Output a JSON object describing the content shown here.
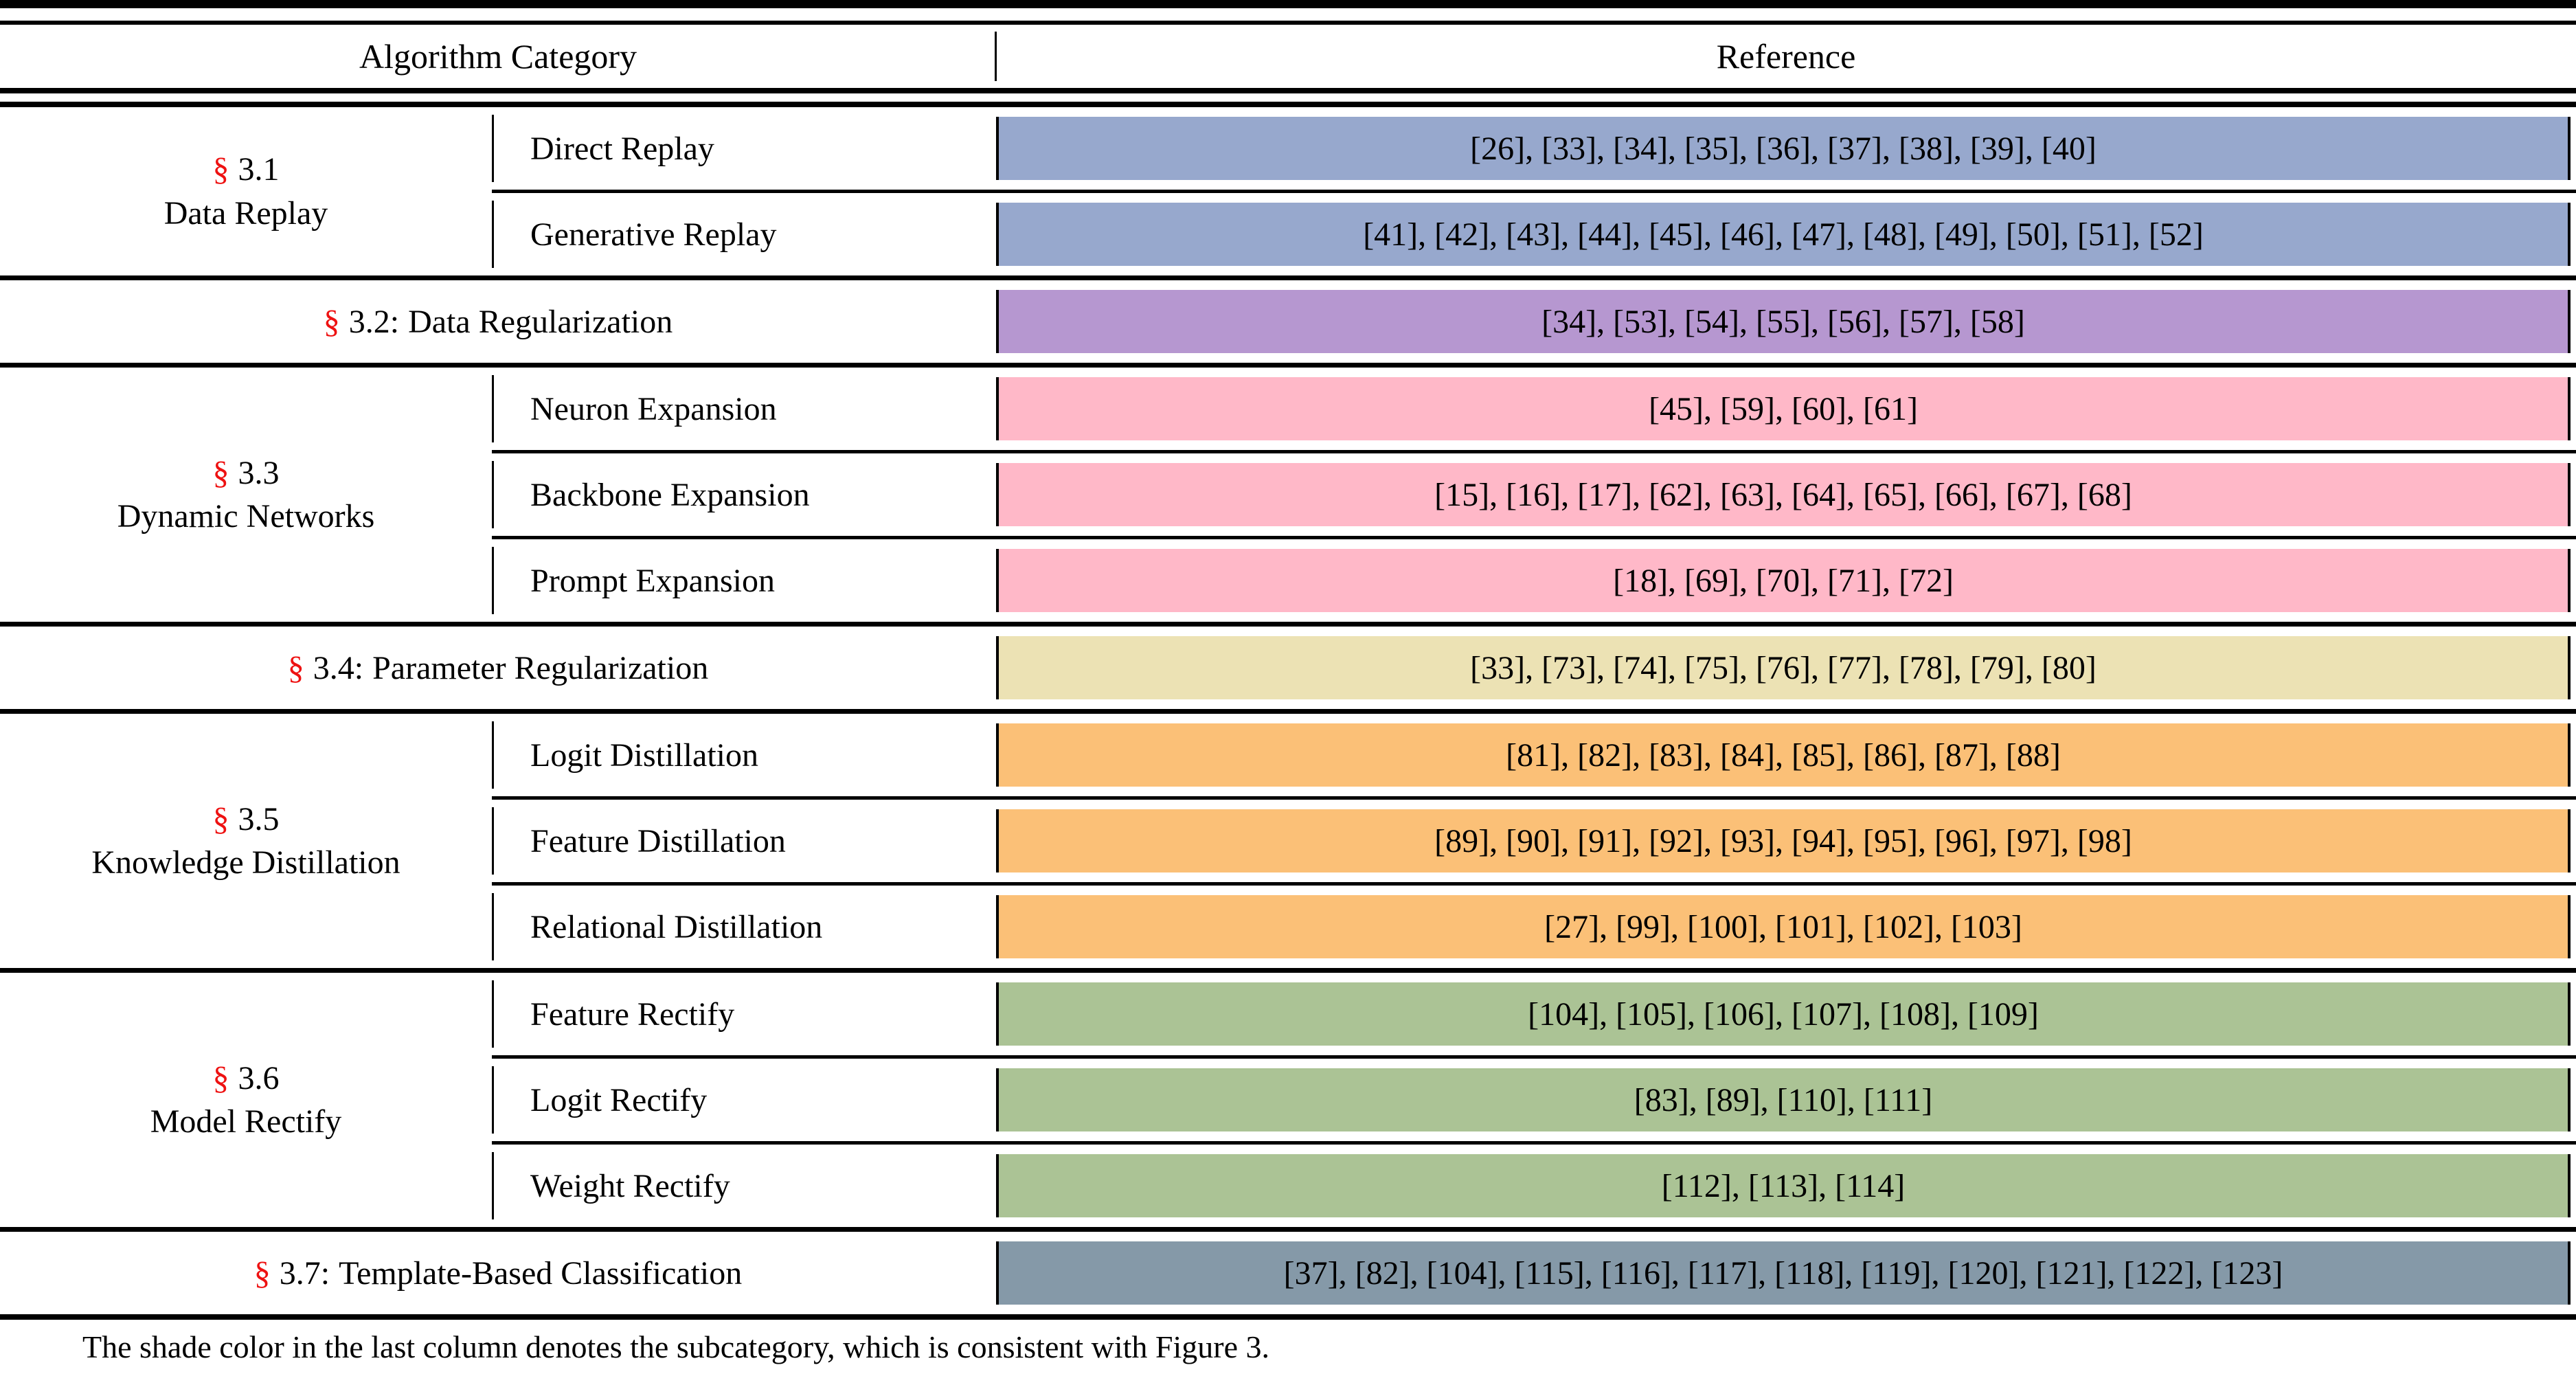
{
  "accent": {
    "section_mark_color": "#ee1111"
  },
  "header": {
    "algorithm_category": "Algorithm Category",
    "reference": "Reference"
  },
  "sections": [
    {
      "mark": "§",
      "num": "3.1",
      "name": "Data Replay",
      "color": "#97a8cd",
      "rows": [
        {
          "label": "Direct Replay",
          "refs": "[26], [33], [34], [35], [36], [37], [38], [39], [40]"
        },
        {
          "label": "Generative Replay",
          "refs": "[41], [42], [43], [44], [45], [46], [47], [48], [49], [50], [51], [52]"
        }
      ]
    },
    {
      "mark": "§",
      "num": "3.2:",
      "name": "Data Regularization",
      "color": "#b697d0",
      "refs": "[34], [53], [54], [55], [56], [57], [58]"
    },
    {
      "mark": "§",
      "num": "3.3",
      "name": "Dynamic Networks",
      "color": "#ffb8c8",
      "rows": [
        {
          "label": "Neuron Expansion",
          "refs": "[45], [59], [60], [61]"
        },
        {
          "label": "Backbone Expansion",
          "refs": "[15], [16], [17], [62], [63], [64], [65], [66], [67], [68]"
        },
        {
          "label": "Prompt Expansion",
          "refs": "[18], [69], [70], [71], [72]"
        }
      ]
    },
    {
      "mark": "§",
      "num": "3.4:",
      "name": "Parameter Regularization",
      "color": "#ece2b4",
      "refs": "[33], [73], [74], [75], [76], [77], [78], [79], [80]"
    },
    {
      "mark": "§",
      "num": "3.5",
      "name": "Knowledge Distillation",
      "color": "#fbc077",
      "rows": [
        {
          "label": "Logit Distillation",
          "refs": "[81], [82], [83], [84], [85], [86], [87], [88]"
        },
        {
          "label": "Feature Distillation",
          "refs": "[89], [90], [91], [92], [93], [94], [95], [96], [97], [98]"
        },
        {
          "label": "Relational Distillation",
          "refs": "[27], [99], [100], [101], [102], [103]"
        }
      ]
    },
    {
      "mark": "§",
      "num": "3.6",
      "name": "Model Rectify",
      "color": "#abc395",
      "rows": [
        {
          "label": "Feature Rectify",
          "refs": "[104], [105], [106], [107], [108], [109]"
        },
        {
          "label": "Logit Rectify",
          "refs": "[83], [89], [110], [111]"
        },
        {
          "label": "Weight Rectify",
          "refs": "[112], [113], [114]"
        }
      ]
    },
    {
      "mark": "§",
      "num": "3.7:",
      "name": "Template-Based Classification",
      "color": "#8599a8",
      "refs": "[37], [82], [104], [115], [116], [117], [118], [119], [120], [121], [122], [123]"
    }
  ],
  "footnote": "The shade color in the last column denotes the subcategory, which is consistent with Figure 3."
}
